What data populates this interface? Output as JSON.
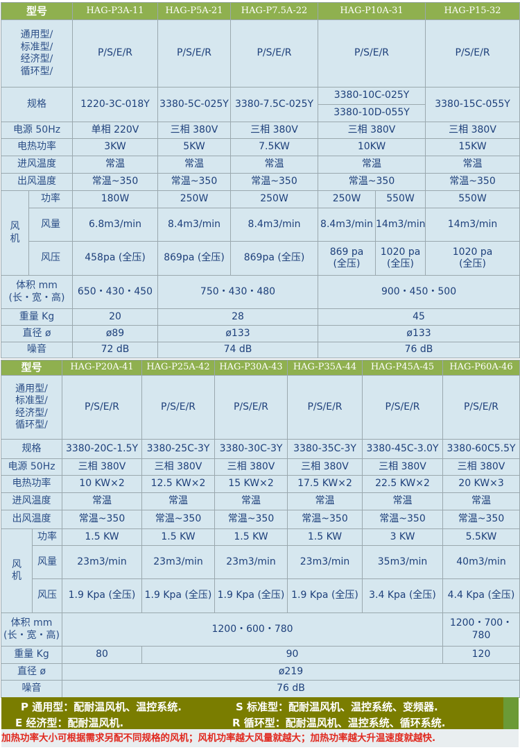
{
  "labels": {
    "model": "型号",
    "type": "通用型/\n标准型/\n经济型/\n循环型/",
    "spec": "规格",
    "power_supply": "电源 50Hz",
    "heat_power": "电热功率",
    "inlet_temp": "进风温度",
    "outlet_temp": "出风温度",
    "fan": "风\n机",
    "fan_power": "功率",
    "air_volume": "风量",
    "air_pressure": "风压",
    "volume": "体积 mm\n(长・宽・高)",
    "weight": "重量 Kg",
    "diameter": "直径 ø",
    "noise": "噪音"
  },
  "table1": {
    "models": [
      "HAG-P3A-11",
      "HAG-P5A-21",
      "HAG-P7.5A-22",
      "HAG-P10A-31",
      "HAG-P15-32"
    ],
    "type": "P/S/E/R",
    "spec": [
      "1220-3C-018Y",
      "3380-5C-025Y",
      "3380-7.5C-025Y",
      "3380-10C-025Y",
      "3380-10D-055Y",
      "3380-15C-055Y"
    ],
    "power_supply": [
      "单相 220V",
      "三相 380V",
      "三相 380V",
      "三相 380V",
      "三相 380V"
    ],
    "heat_power": [
      "3KW",
      "5KW",
      "7.5KW",
      "10KW",
      "15KW"
    ],
    "inlet_temp": "常温",
    "outlet_temp": "常温~350",
    "fan_power": [
      "180W",
      "250W",
      "250W",
      "250W",
      "550W",
      "550W"
    ],
    "air_volume": [
      "6.8m3/min",
      "8.4m3/min",
      "8.4m3/min",
      "8.4m3/min",
      "14m3/min",
      "14m3/min"
    ],
    "air_pressure": [
      "458pa (全压)",
      "869pa (全压)",
      "869pa (全压)",
      "869 pa\n(全压)",
      "1020 pa\n(全压)",
      "1020 pa\n(全压)"
    ],
    "volume": [
      "650・430・450",
      "750・430・480",
      "900・450・500"
    ],
    "weight": [
      "20",
      "28",
      "45"
    ],
    "diameter": [
      "ø89",
      "ø133",
      "ø133"
    ],
    "noise": [
      "72 dB",
      "74 dB",
      "76 dB"
    ]
  },
  "table2": {
    "models": [
      "HAG-P20A-41",
      "HAG-P25A-42",
      "HAG-P30A-43",
      "HAG-P35A-44",
      "HAG-P45A-45",
      "HAG-P60A-46"
    ],
    "type": "P/S/E/R",
    "spec": [
      "3380-20C-1.5Y",
      "3380-25C-3Y",
      "3380-30C-3Y",
      "3380-35C-3Y",
      "3380-45C-3.0Y",
      "3380-60C5.5Y"
    ],
    "power_supply": "三相 380V",
    "heat_power": [
      "10 KW×2",
      "12.5 KW×2",
      "15 KW×2",
      "17.5 KW×2",
      "22.5 KW×2",
      "20 KW×3"
    ],
    "inlet_temp": "常温",
    "outlet_temp": "常温~350",
    "fan_power": [
      "1.5 KW",
      "1.5 KW",
      "1.5 KW",
      "1.5 KW",
      "3 KW",
      "5.5KW"
    ],
    "air_volume": [
      "23m3/min",
      "23m3/min",
      "23m3/min",
      "23m3/min",
      "35m3/min",
      "40m3/min"
    ],
    "air_pressure": [
      "1.9 Kpa (全压)",
      "1.9 Kpa (全压)",
      "1.9 Kpa (全压)",
      "1.9 Kpa (全压)",
      "3.4 Kpa (全压)",
      "4.4 Kpa (全压)"
    ],
    "volume": [
      "1200・600・780",
      "1200・700・780"
    ],
    "weight": [
      "80",
      "90",
      "120"
    ],
    "diameter": "ø219",
    "noise": "76 dB"
  },
  "footer": {
    "p_type": "P 通用型：配耐温风机、温控系统.",
    "s_type": "S 标准型：配耐温风机、温控系统、变频器.",
    "e_type": "E 经济型：配耐温风机.",
    "r_type": "R 循环型：配耐温风机、温控系统、循环系统.",
    "note": "加热功率大小可根据需求另配不同规格的风机；风机功率越大风量就越大；加热功率越大升温速度就越快."
  },
  "colors": {
    "header": "#8fb04f",
    "cell": "#d6e7ef",
    "text": "#1d3f7a",
    "footer": "#7a7d00",
    "note": "#e0281e"
  }
}
